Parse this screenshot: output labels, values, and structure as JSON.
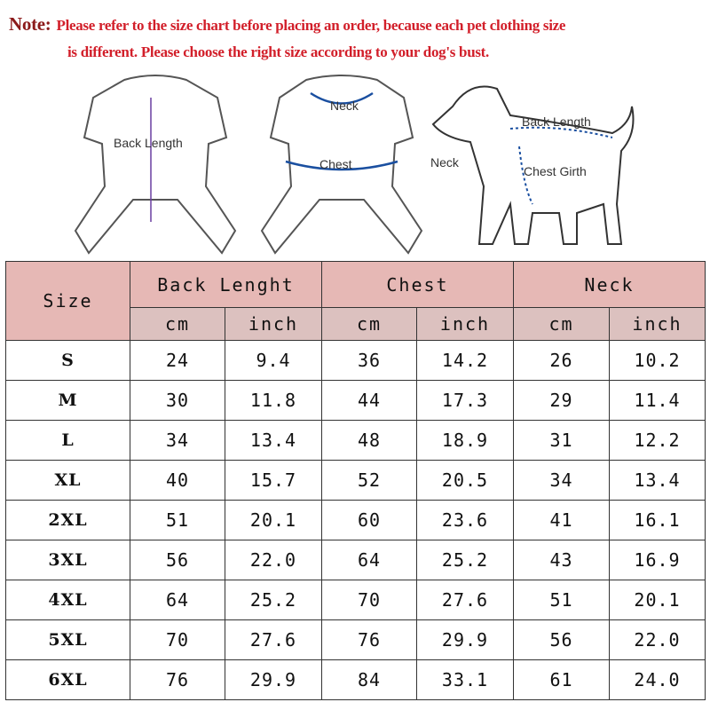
{
  "note": {
    "label": "Note:",
    "line1": "Please refer to the size chart before placing an order, because each pet clothing size",
    "line2": "is different. Please choose the right size according to your dog's bust."
  },
  "illustrations": {
    "front": {
      "back_length": "Back Length"
    },
    "back": {
      "neck": "Neck",
      "chest": "Chest"
    },
    "dog": {
      "back_length": "Back Length",
      "neck": "Neck",
      "chest_girth": "Chest Girth"
    }
  },
  "colors": {
    "note_text": "#d21f2a",
    "header_bg": "#e6b8b5",
    "subheader_bg": "#dcc1bf",
    "arrow": "#1a4fa0"
  },
  "table": {
    "headers": {
      "size": "Size",
      "back_length": "Back Lenght",
      "chest": "Chest",
      "neck": "Neck",
      "cm": "cm",
      "inch": "inch"
    },
    "rows": [
      [
        "S",
        "24",
        "9.4",
        "36",
        "14.2",
        "26",
        "10.2"
      ],
      [
        "M",
        "30",
        "11.8",
        "44",
        "17.3",
        "29",
        "11.4"
      ],
      [
        "L",
        "34",
        "13.4",
        "48",
        "18.9",
        "31",
        "12.2"
      ],
      [
        "XL",
        "40",
        "15.7",
        "52",
        "20.5",
        "34",
        "13.4"
      ],
      [
        "2XL",
        "51",
        "20.1",
        "60",
        "23.6",
        "41",
        "16.1"
      ],
      [
        "3XL",
        "56",
        "22.0",
        "64",
        "25.2",
        "43",
        "16.9"
      ],
      [
        "4XL",
        "64",
        "25.2",
        "70",
        "27.6",
        "51",
        "20.1"
      ],
      [
        "5XL",
        "70",
        "27.6",
        "76",
        "29.9",
        "56",
        "22.0"
      ],
      [
        "6XL",
        "76",
        "29.9",
        "84",
        "33.1",
        "61",
        "24.0"
      ]
    ]
  }
}
